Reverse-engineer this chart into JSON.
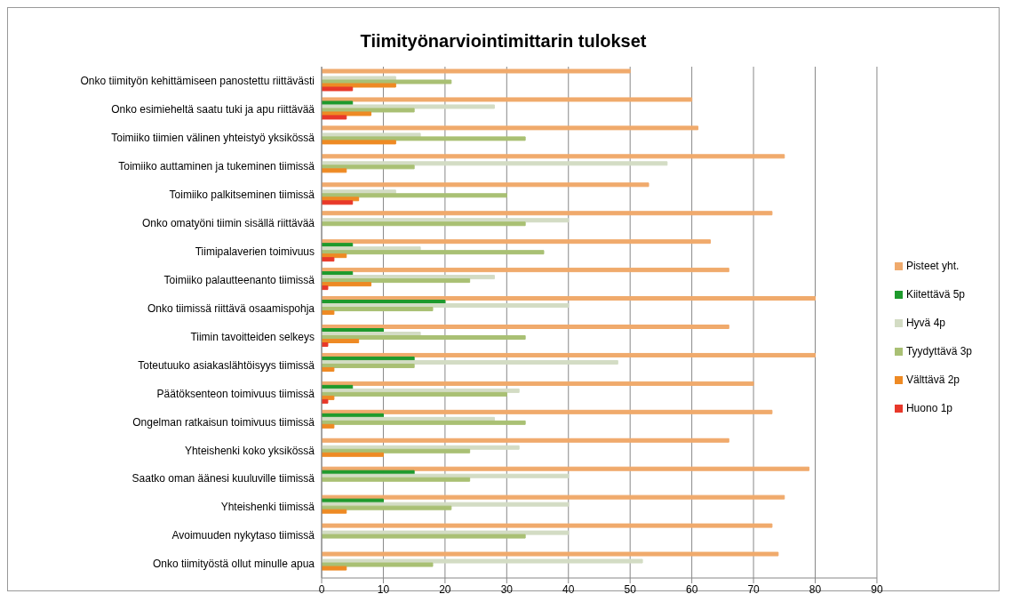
{
  "chart_data": {
    "type": "bar",
    "title": "Tiimityönarviointimittarin tulokset",
    "orientation": "horizontal",
    "categories": [
      "Onko tiimityön kehittämiseen panostettu riittävästi",
      "Onko esimieheltä saatu tuki ja apu riittävää",
      "Toimiiko tiimien välinen yhteistyö yksikössä",
      "Toimiiko auttaminen ja tukeminen tiimissä",
      "Toimiiko palkitseminen tiimissä",
      "Onko omatyöni tiimin sisällä riittävää",
      "Tiimipalaverien toimivuus",
      "Toimiiko palautteenanto tiimissä",
      "Onko tiimissä riittävä osaamispohja",
      "Tiimin tavoitteiden selkeys",
      "Toteutuuko asiakaslähtöisyys tiimissä",
      "Päätöksenteon toimivuus tiimissä",
      "Ongelman ratkaisun toimivuus tiimissä",
      "Yhteishenki koko yksikössä",
      "Saatko oman äänesi kuuluville tiimissä",
      "Yhteishenki tiimissä",
      "Avoimuuden nykytaso tiimissä",
      "Onko tiimityöstä ollut minulle apua"
    ],
    "series": [
      {
        "name": "Pisteet yht.",
        "color": "#f0aa6c",
        "values": [
          50,
          60,
          61,
          75,
          53,
          73,
          63,
          66,
          80,
          66,
          80,
          70,
          73,
          66,
          79,
          75,
          73,
          74
        ]
      },
      {
        "name": "Kiitettävä 5p",
        "color": "#1e9a2c",
        "values": [
          null,
          5,
          null,
          null,
          null,
          null,
          5,
          5,
          20,
          10,
          15,
          5,
          10,
          null,
          15,
          10,
          null,
          null
        ]
      },
      {
        "name": "Hyvä 4p",
        "color": "#d3dcc4",
        "values": [
          12,
          28,
          16,
          56,
          12,
          40,
          16,
          28,
          40,
          16,
          48,
          32,
          28,
          32,
          40,
          40,
          40,
          52
        ]
      },
      {
        "name": "Tyydyttävä 3p",
        "color": "#a9c074",
        "values": [
          21,
          15,
          33,
          15,
          30,
          33,
          36,
          24,
          18,
          33,
          15,
          30,
          33,
          24,
          24,
          21,
          33,
          18
        ]
      },
      {
        "name": "Välttävä 2p",
        "color": "#ee8a24",
        "values": [
          12,
          8,
          12,
          4,
          6,
          null,
          4,
          8,
          2,
          6,
          2,
          2,
          2,
          10,
          null,
          4,
          null,
          4
        ]
      },
      {
        "name": "Huono 1p",
        "color": "#e8382a",
        "values": [
          5,
          4,
          null,
          null,
          5,
          null,
          2,
          1,
          null,
          1,
          null,
          1,
          null,
          null,
          null,
          null,
          null,
          null
        ]
      }
    ],
    "xlim": [
      0,
      90
    ],
    "xticks": [
      0,
      10,
      20,
      30,
      40,
      50,
      60,
      70,
      80,
      90
    ],
    "grid": "x",
    "legend": "right"
  }
}
